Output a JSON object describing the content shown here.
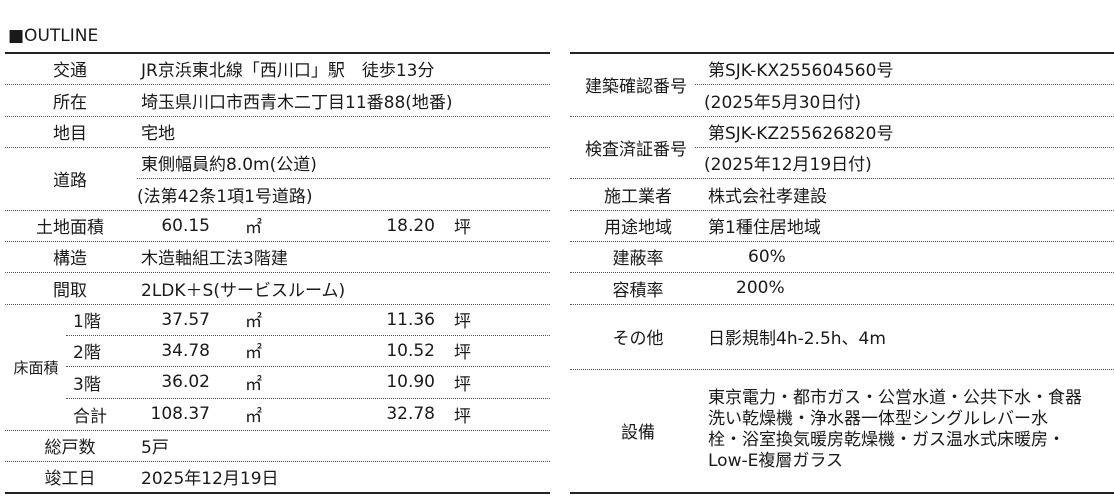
{
  "title": "■OUTLINE",
  "left": {
    "access": {
      "label": "交通",
      "value": "JR京浜東北線「西川口」駅　徒歩13分"
    },
    "location": {
      "label": "所在",
      "value": "埼玉県川口市西青木二丁目11番88(地番)"
    },
    "land_category": {
      "label": "地目",
      "value": "宅地"
    },
    "road": {
      "label": "道路",
      "line1": "東側幅員約8.0m(公道)",
      "line2": "(法第42条1項1号道路)"
    },
    "land_area": {
      "label": "土地面積",
      "sqm": "60.15",
      "sqm_unit": "㎡",
      "tsubo": "18.20",
      "tsubo_unit": "坪"
    },
    "structure": {
      "label": "構造",
      "value": "木造軸組工法3階建"
    },
    "layout": {
      "label": "間取",
      "value": "2LDK＋S(サービスルーム)"
    },
    "floor_area": {
      "label": "床面積",
      "rows": [
        {
          "floor": "1階",
          "sqm": "37.57",
          "sqm_unit": "㎡",
          "tsubo": "11.36",
          "tsubo_unit": "坪"
        },
        {
          "floor": "2階",
          "sqm": "34.78",
          "sqm_unit": "㎡",
          "tsubo": "10.52",
          "tsubo_unit": "坪"
        },
        {
          "floor": "3階",
          "sqm": "36.02",
          "sqm_unit": "㎡",
          "tsubo": "10.90",
          "tsubo_unit": "坪"
        },
        {
          "floor": "合計",
          "sqm": "108.37",
          "sqm_unit": "㎡",
          "tsubo": "32.78",
          "tsubo_unit": "坪"
        }
      ]
    },
    "units": {
      "label": "総戸数",
      "value": "5戸"
    },
    "completion": {
      "label": "竣工日",
      "value": "2025年12月19日"
    }
  },
  "right": {
    "building_confirmation": {
      "label": "建築確認番号",
      "line1": "第SJK-KX255604560号",
      "line2": "(2025年5月30日付)"
    },
    "inspection": {
      "label": "検査済証番号",
      "line1": "第SJK-KZ255626820号",
      "line2": "(2025年12月19日付)"
    },
    "builder": {
      "label": "施工業者",
      "value": "株式会社孝建設"
    },
    "zoning": {
      "label": "用途地域",
      "value": "第1種住居地域"
    },
    "coverage": {
      "label": "建蔽率",
      "value": "60%"
    },
    "far": {
      "label": "容積率",
      "value": "200%"
    },
    "other": {
      "label": "その他",
      "value": "日影規制4h-2.5h、4m"
    },
    "facilities": {
      "label": "設備",
      "lines": [
        "東京電力・都市ガス・公営水道・公共下水・食器",
        "洗い乾燥機・浄水器一体型シングルレバー水",
        "栓・浴室換気暖房乾燥機・ガス温水式床暖房・",
        "Low-E複層ガラス"
      ]
    }
  }
}
